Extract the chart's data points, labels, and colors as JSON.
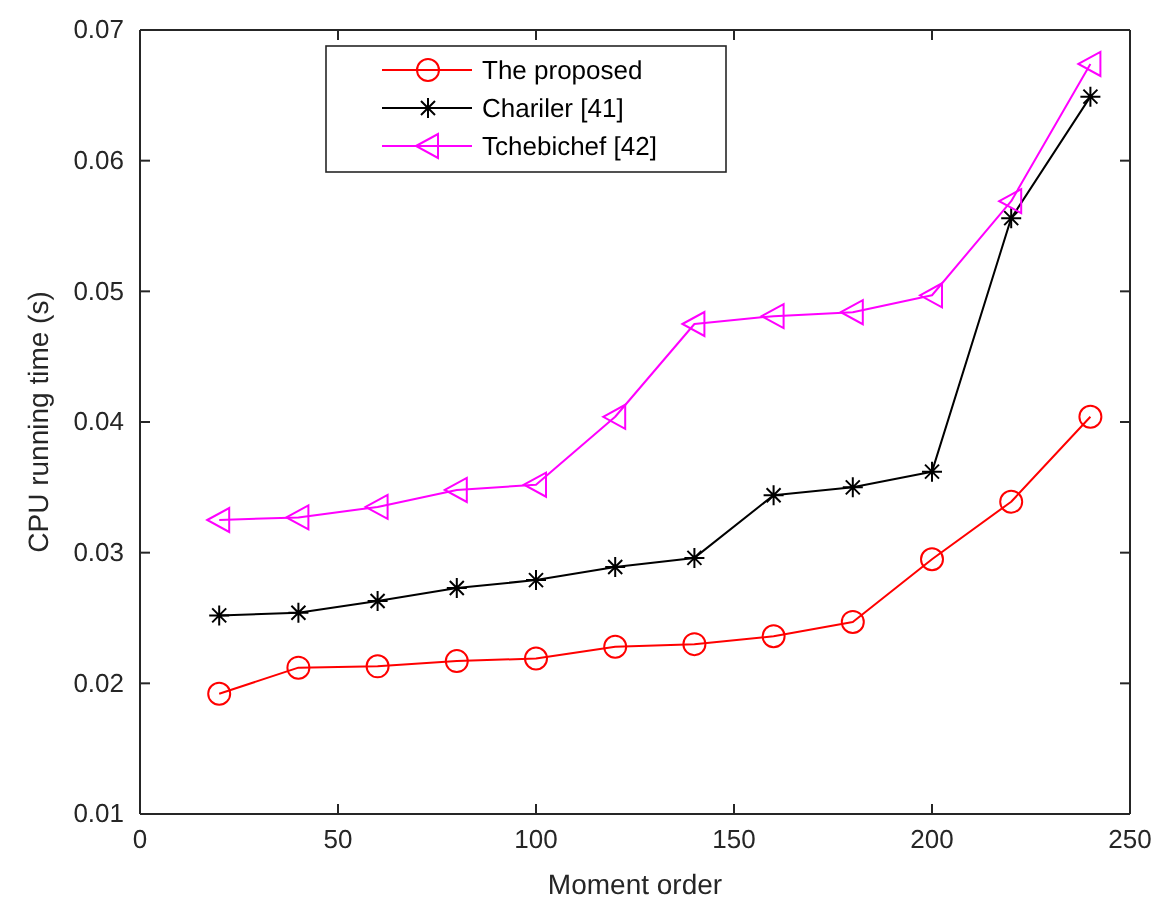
{
  "chart_data": {
    "type": "line",
    "xlabel": "Moment order",
    "ylabel": "CPU running time (s)",
    "x": [
      20,
      40,
      60,
      80,
      100,
      120,
      140,
      160,
      180,
      200,
      220,
      240
    ],
    "xlim": [
      0,
      250
    ],
    "xticks": [
      0,
      50,
      100,
      150,
      200,
      250
    ],
    "ylim": [
      0.01,
      0.07
    ],
    "yticks": [
      0.01,
      0.02,
      0.03,
      0.04,
      0.05,
      0.06,
      0.07
    ],
    "grid": false,
    "legend": "top",
    "line_style": "solid",
    "series": [
      {
        "name": "The proposed",
        "color": "#ff0000",
        "marker": "circle",
        "values": [
          0.0192,
          0.0212,
          0.0213,
          0.0217,
          0.0219,
          0.0228,
          0.023,
          0.0236,
          0.0247,
          0.0295,
          0.0339,
          0.0404
        ]
      },
      {
        "name": "Chariler [41]",
        "color": "#000000",
        "marker": "cross",
        "values": [
          0.0252,
          0.0254,
          0.0263,
          0.0273,
          0.0279,
          0.0289,
          0.0296,
          0.0344,
          0.035,
          0.0362,
          0.0556,
          0.0649
        ]
      },
      {
        "name": "Tchebichef [42]",
        "color": "#ff00ff",
        "marker": "triangle",
        "values": [
          0.0325,
          0.0327,
          0.0335,
          0.0348,
          0.0352,
          0.0404,
          0.0475,
          0.0481,
          0.0484,
          0.0497,
          0.0569,
          0.0674
        ]
      }
    ]
  }
}
